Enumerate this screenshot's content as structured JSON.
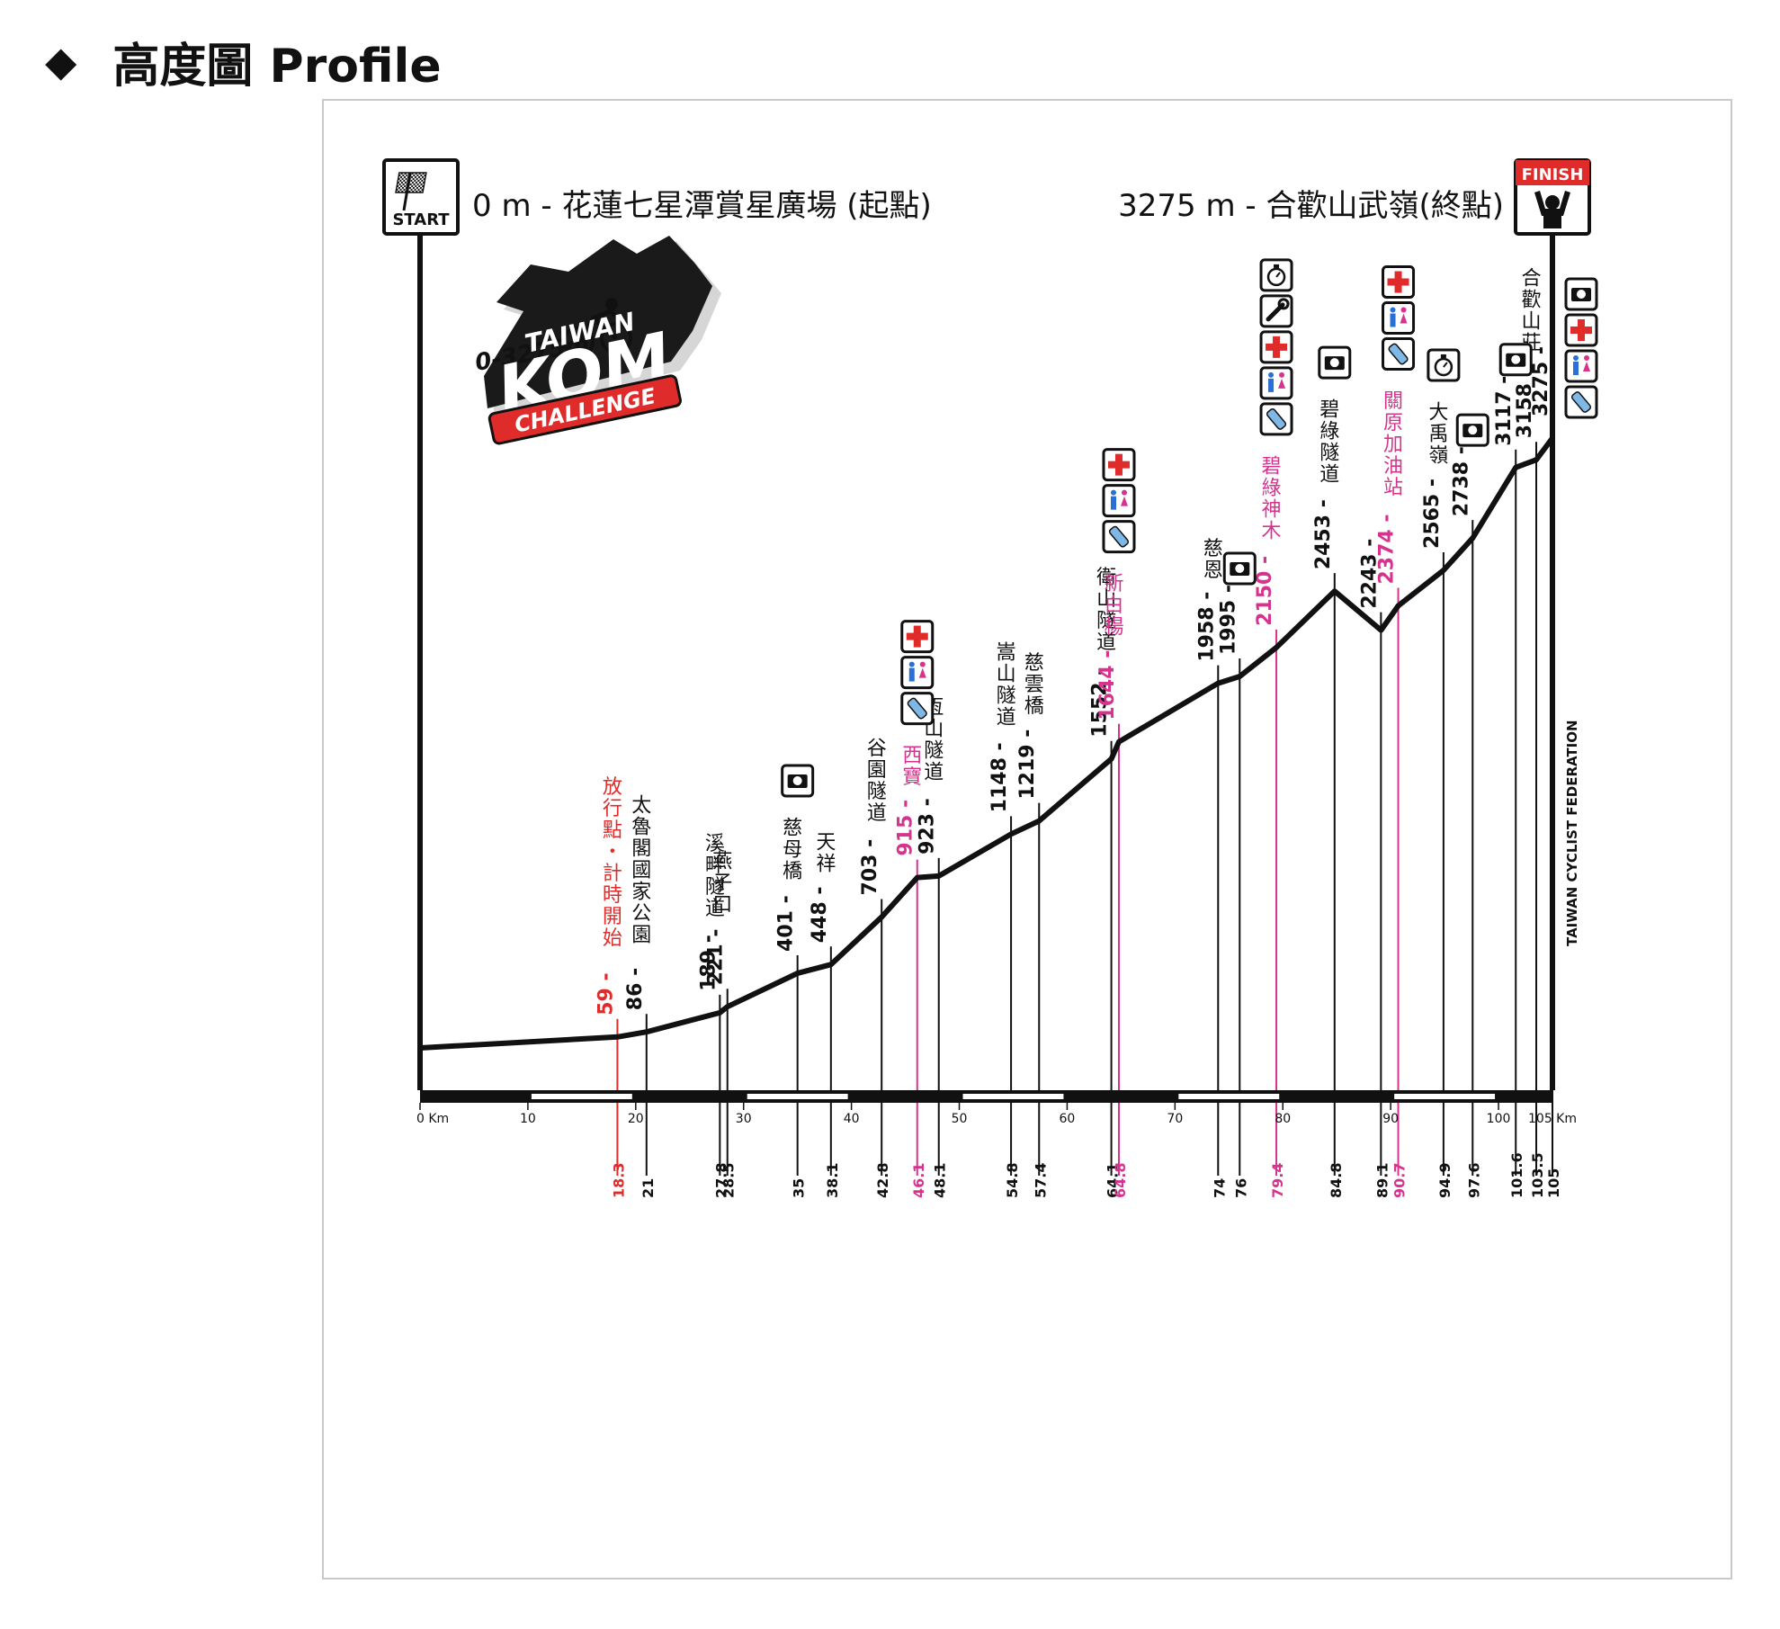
{
  "heading": {
    "marker": "◆",
    "title": "高度圖  Profile"
  },
  "colors": {
    "ink": "#111111",
    "pink": "#d6338e",
    "red": "#e02b2b",
    "frame": "#c9c9c9"
  },
  "header": {
    "start_badge": "START",
    "finish_badge": "FINISH",
    "start_text": "0 m - 花蓮七星潭賞星廣場 (起點)",
    "finish_text": "3275 m - 合歡山武嶺(終點)"
  },
  "logo": {
    "range": "0-3275m",
    "line1": "TAIWAN",
    "line2": "KOM",
    "line3": "CHALLENGE"
  },
  "federation": "TAIWAN CYCLIST FEDERATION",
  "chart_data": {
    "type": "line",
    "title": "",
    "xlabel": "Km",
    "ylabel": "m",
    "xlim": [
      0,
      105
    ],
    "ylim": [
      0,
      3275
    ],
    "x_ticks": [
      0,
      10,
      20,
      30,
      40,
      50,
      60,
      70,
      80,
      90,
      100,
      105
    ],
    "x_tick_labels": [
      "0 Km",
      "10",
      "20",
      "30",
      "40",
      "50",
      "60",
      "70",
      "80",
      "90",
      "100",
      "105 Km"
    ],
    "series": [
      {
        "points": [
          [
            0,
            0
          ],
          [
            18.3,
            59
          ],
          [
            21,
            86
          ],
          [
            27.8,
            189
          ],
          [
            28.5,
            221
          ],
          [
            35,
            401
          ],
          [
            38.1,
            448
          ],
          [
            42.8,
            703
          ],
          [
            46.1,
            915
          ],
          [
            48.1,
            923
          ],
          [
            54.8,
            1148
          ],
          [
            57.4,
            1219
          ],
          [
            64.1,
            1552
          ],
          [
            64.8,
            1644
          ],
          [
            74,
            1958
          ],
          [
            76,
            1995
          ],
          [
            79.4,
            2150
          ],
          [
            84.8,
            2453
          ],
          [
            89.1,
            2243
          ],
          [
            90.7,
            2374
          ],
          [
            94.9,
            2565
          ],
          [
            97.6,
            2738
          ],
          [
            101.6,
            3117
          ],
          [
            103.5,
            3158
          ],
          [
            105,
            3275
          ]
        ]
      }
    ],
    "points": [
      {
        "km": "18.3",
        "elev": "59",
        "name": "放行點・計時開始",
        "color": "red"
      },
      {
        "km": "21",
        "elev": "86",
        "name": "太魯閣國家公園"
      },
      {
        "km": "27.8",
        "elev": "189",
        "name": "溪畔隧道"
      },
      {
        "km": "28.5",
        "elev": "221",
        "name": "燕子口"
      },
      {
        "km": "35",
        "elev": "401",
        "name": "慈母橋",
        "icons": [
          "camera"
        ]
      },
      {
        "km": "38.1",
        "elev": "448",
        "name": "天祥"
      },
      {
        "km": "42.8",
        "elev": "703",
        "name": "谷園隧道"
      },
      {
        "km": "46.1",
        "elev": "915",
        "name": "西寶",
        "color": "pink",
        "icons": [
          "first-aid",
          "toilet",
          "water"
        ]
      },
      {
        "km": "48.1",
        "elev": "923",
        "name": "恆山隧道"
      },
      {
        "km": "54.8",
        "elev": "1148",
        "name": "嵩山隧道"
      },
      {
        "km": "57.4",
        "elev": "1219",
        "name": "慈雲橋"
      },
      {
        "km": "64.1",
        "elev": "1552",
        "name": "衛山隧道"
      },
      {
        "km": "64.8",
        "elev": "1644",
        "name": "新白楊",
        "color": "pink",
        "icons": [
          "first-aid",
          "toilet",
          "water"
        ]
      },
      {
        "km": "74",
        "elev": "1958",
        "name": "慈恩"
      },
      {
        "km": "76",
        "elev": "1995",
        "name": "",
        "icons": [
          "camera"
        ]
      },
      {
        "km": "79.4",
        "elev": "2150",
        "name": "碧綠神木",
        "color": "pink",
        "icons": [
          "timer",
          "wrench",
          "first-aid",
          "toilet",
          "water"
        ]
      },
      {
        "km": "84.8",
        "elev": "2453",
        "name": "碧綠隧道",
        "icons": [
          "camera"
        ]
      },
      {
        "km": "89.1",
        "elev": "2243",
        "name": ""
      },
      {
        "km": "90.7",
        "elev": "2374",
        "name": "關原加油站",
        "color": "pink",
        "icons": [
          "first-aid",
          "toilet",
          "water"
        ]
      },
      {
        "km": "94.9",
        "elev": "2565",
        "name": "大禹嶺",
        "icons": [
          "timer"
        ]
      },
      {
        "km": "97.6",
        "elev": "2738",
        "name": "",
        "icons": [
          "camera"
        ]
      },
      {
        "km": "101.6",
        "elev": "3117",
        "name": "",
        "icons": [
          "camera"
        ]
      },
      {
        "km": "103.5",
        "elev": "3158",
        "name": "合歡山莊"
      },
      {
        "km": "105",
        "elev": "3275",
        "name": "",
        "icons": [
          "camera",
          "first-aid",
          "toilet",
          "water"
        ]
      }
    ]
  }
}
